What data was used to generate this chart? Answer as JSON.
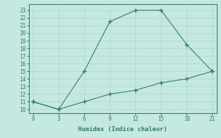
{
  "line1_x": [
    0,
    3,
    6,
    9,
    12,
    15,
    18,
    21
  ],
  "line1_y": [
    11,
    10,
    15,
    21.5,
    23,
    23,
    18.5,
    15
  ],
  "line2_x": [
    0,
    3,
    6,
    9,
    12,
    15,
    18,
    21
  ],
  "line2_y": [
    11,
    10,
    11,
    12,
    12.5,
    13.5,
    14,
    15
  ],
  "line_color": "#2e7d6e",
  "bg_color": "#c5e8e0",
  "grid_color": "#aed4cc",
  "xlabel": "Humidex (Indice chaleur)",
  "xlim": [
    -0.5,
    21.5
  ],
  "ylim": [
    9.5,
    23.8
  ],
  "xticks": [
    0,
    3,
    6,
    9,
    12,
    15,
    18,
    21
  ],
  "yticks": [
    10,
    11,
    12,
    13,
    14,
    15,
    16,
    17,
    18,
    19,
    20,
    21,
    22,
    23
  ],
  "xlabel_fontsize": 6.5,
  "tick_fontsize": 5.5
}
